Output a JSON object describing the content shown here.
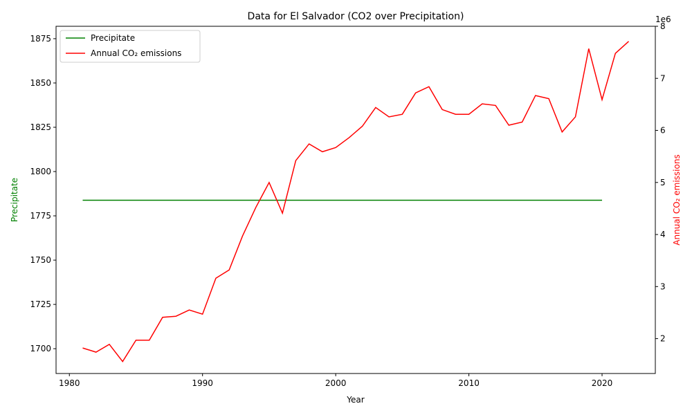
{
  "chart_data": {
    "type": "line",
    "title": "Data for El Salvador (CO2 over Precipitation)",
    "xlabel": "Year",
    "ylabel_left": "Precipitate",
    "ylabel_right": "Annual CO₂ emissions",
    "right_axis_offset_label": "1e6",
    "xlim": [
      1979,
      2024
    ],
    "ylim_left": [
      1686,
      1882
    ],
    "ylim_right": [
      1330000,
      8000000
    ],
    "x_ticks": [
      1980,
      1990,
      2000,
      2010,
      2020
    ],
    "y_ticks_left": [
      1700,
      1725,
      1750,
      1775,
      1800,
      1825,
      1850,
      1875
    ],
    "y_ticks_right": [
      2000000,
      3000000,
      4000000,
      5000000,
      6000000,
      7000000,
      8000000
    ],
    "y_tick_labels_right": [
      "2",
      "3",
      "4",
      "5",
      "6",
      "7",
      "8"
    ],
    "legend_position": "top-left",
    "grid": false,
    "series": [
      {
        "name": "Precipitate",
        "axis": "left",
        "color": "#008000",
        "x": [
          1981,
          2020
        ],
        "values": [
          1783.8,
          1783.8
        ]
      },
      {
        "name": "Annual CO₂ emissions",
        "axis": "right",
        "color": "#ff0000",
        "x": [
          1981,
          1982,
          1983,
          1984,
          1985,
          1986,
          1987,
          1988,
          1989,
          1990,
          1991,
          1992,
          1993,
          1994,
          1995,
          1996,
          1997,
          1998,
          1999,
          2000,
          2001,
          2002,
          2003,
          2004,
          2005,
          2006,
          2007,
          2008,
          2009,
          2010,
          2011,
          2012,
          2013,
          2014,
          2015,
          2016,
          2017,
          2018,
          2019,
          2020,
          2021,
          2022
        ],
        "values": [
          1820000,
          1740000,
          1890000,
          1560000,
          1970000,
          1970000,
          2410000,
          2430000,
          2550000,
          2470000,
          3160000,
          3320000,
          3970000,
          4520000,
          5000000,
          4410000,
          5420000,
          5740000,
          5590000,
          5670000,
          5860000,
          6080000,
          6440000,
          6260000,
          6310000,
          6720000,
          6840000,
          6400000,
          6310000,
          6310000,
          6510000,
          6480000,
          6100000,
          6160000,
          6670000,
          6610000,
          5970000,
          6260000,
          7570000,
          6590000,
          7480000,
          7710000
        ]
      }
    ]
  }
}
